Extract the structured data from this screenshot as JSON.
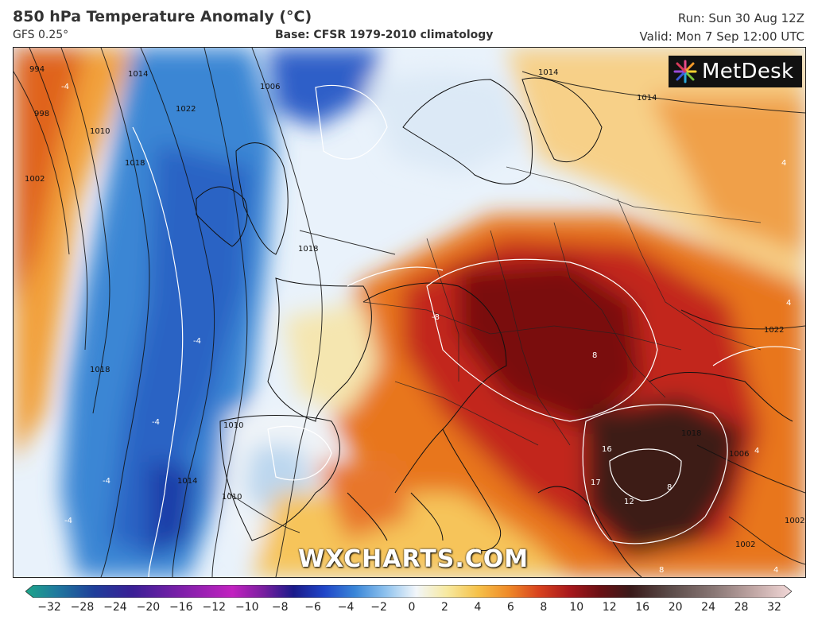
{
  "header": {
    "title": "850 hPa Temperature Anomaly (°C)",
    "model": "GFS 0.25°",
    "base": "Base: CFSR 1979-2010 climatology",
    "run": "Run: Sun 30 Aug 12Z",
    "valid": "Valid: Mon 7 Sep 12:00 UTC"
  },
  "logo": {
    "name": "MetDesk"
  },
  "watermark": "WXCHARTS.COM",
  "colorbar": {
    "ticks": [
      "−32",
      "−28",
      "−24",
      "−20",
      "−16",
      "−12",
      "−10",
      "−8",
      "−6",
      "−4",
      "−2",
      "0",
      "2",
      "4",
      "6",
      "8",
      "10",
      "12",
      "16",
      "20",
      "24",
      "28",
      "32"
    ],
    "colors": [
      "#1ea68a",
      "#1f6fa6",
      "#1f3e9a",
      "#2a1f8f",
      "#5a1fa0",
      "#9a22b0",
      "#c222c0",
      "#1a1a8a",
      "#1f45c8",
      "#2f7ad8",
      "#7ab6ea",
      "#e8f2fa",
      "#f7e9a0",
      "#f6c24a",
      "#ef8a28",
      "#d8421e",
      "#a8181c",
      "#6a1014",
      "#3a1a1a",
      "#5a4a48",
      "#8a7876",
      "#c0a6a4",
      "#e8cfd0"
    ],
    "icon": "arrow-end-icon"
  },
  "map_labels": {
    "isobars": [
      "994",
      "998",
      "1002",
      "1010",
      "1014",
      "1018",
      "1022",
      "1006",
      "1014",
      "1018",
      "1014",
      "1022",
      "1006",
      "1002",
      "1002",
      "1018",
      "1010",
      "1014",
      "1010",
      "1018"
    ],
    "anomalies": [
      "-4",
      "-4",
      "-4",
      "-4",
      "-4",
      "-8",
      "8",
      "16",
      "17",
      "12",
      "8",
      "8",
      "4",
      "4",
      "4",
      "4"
    ]
  }
}
